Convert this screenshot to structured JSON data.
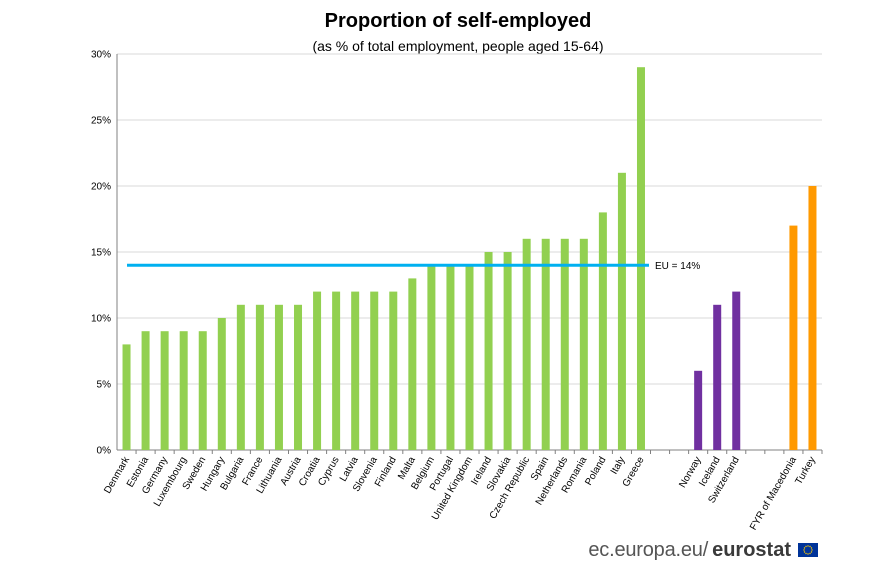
{
  "title": "Proportion of self-employed",
  "subtitle": "(as % of total employment, people aged 15-64)",
  "footer": {
    "url": "ec.europa.eu/",
    "brand": "eurostat"
  },
  "colors": {
    "eu_member": "#92D050",
    "efta": "#7030A0",
    "candidate": "#FF9900",
    "eu_line": "#00B0F0",
    "grid": "#D9D9D9",
    "axis": "#808080",
    "flag_blue": "#003399",
    "flag_star": "#FFCC00"
  },
  "chart_data": {
    "type": "bar",
    "ylim": [
      0,
      30
    ],
    "yticks": [
      0,
      5,
      10,
      15,
      20,
      25,
      30
    ],
    "ytick_labels": [
      "0%",
      "5%",
      "10%",
      "15%",
      "20%",
      "25%",
      "30%"
    ],
    "y_unit": "%",
    "grid": true,
    "xlabel": "",
    "ylabel": "",
    "groups": [
      {
        "color_key": "eu_member",
        "categories": [
          "Denmark",
          "Estonia",
          "Germany",
          "Luxembourg",
          "Sweden",
          "Hungary",
          "Bulgaria",
          "France",
          "Lithuania",
          "Austria",
          "Croatia",
          "Cyprus",
          "Latvia",
          "Slovenia",
          "Finland",
          "Malta",
          "Belgium",
          "Portugal",
          "United Kingdom",
          "Ireland",
          "Slovakia",
          "Czech Republic",
          "Spain",
          "Netherlands",
          "Romania",
          "Poland",
          "Italy",
          "Greece"
        ],
        "values": [
          8,
          9,
          9,
          9,
          9,
          10,
          11,
          11,
          11,
          11,
          12,
          12,
          12,
          12,
          12,
          13,
          14,
          14,
          14,
          15,
          15,
          16,
          16,
          16,
          16,
          18,
          21,
          29
        ]
      },
      {
        "color_key": "efta",
        "categories": [
          "Norway",
          "Iceland",
          "Switzerland"
        ],
        "values": [
          6,
          11,
          12
        ]
      },
      {
        "color_key": "candidate",
        "categories": [
          "FYR of Macedonia",
          "Turkey"
        ],
        "values": [
          17,
          20
        ]
      }
    ],
    "reference_line": {
      "value": 14,
      "label": "EU = 14%"
    }
  }
}
